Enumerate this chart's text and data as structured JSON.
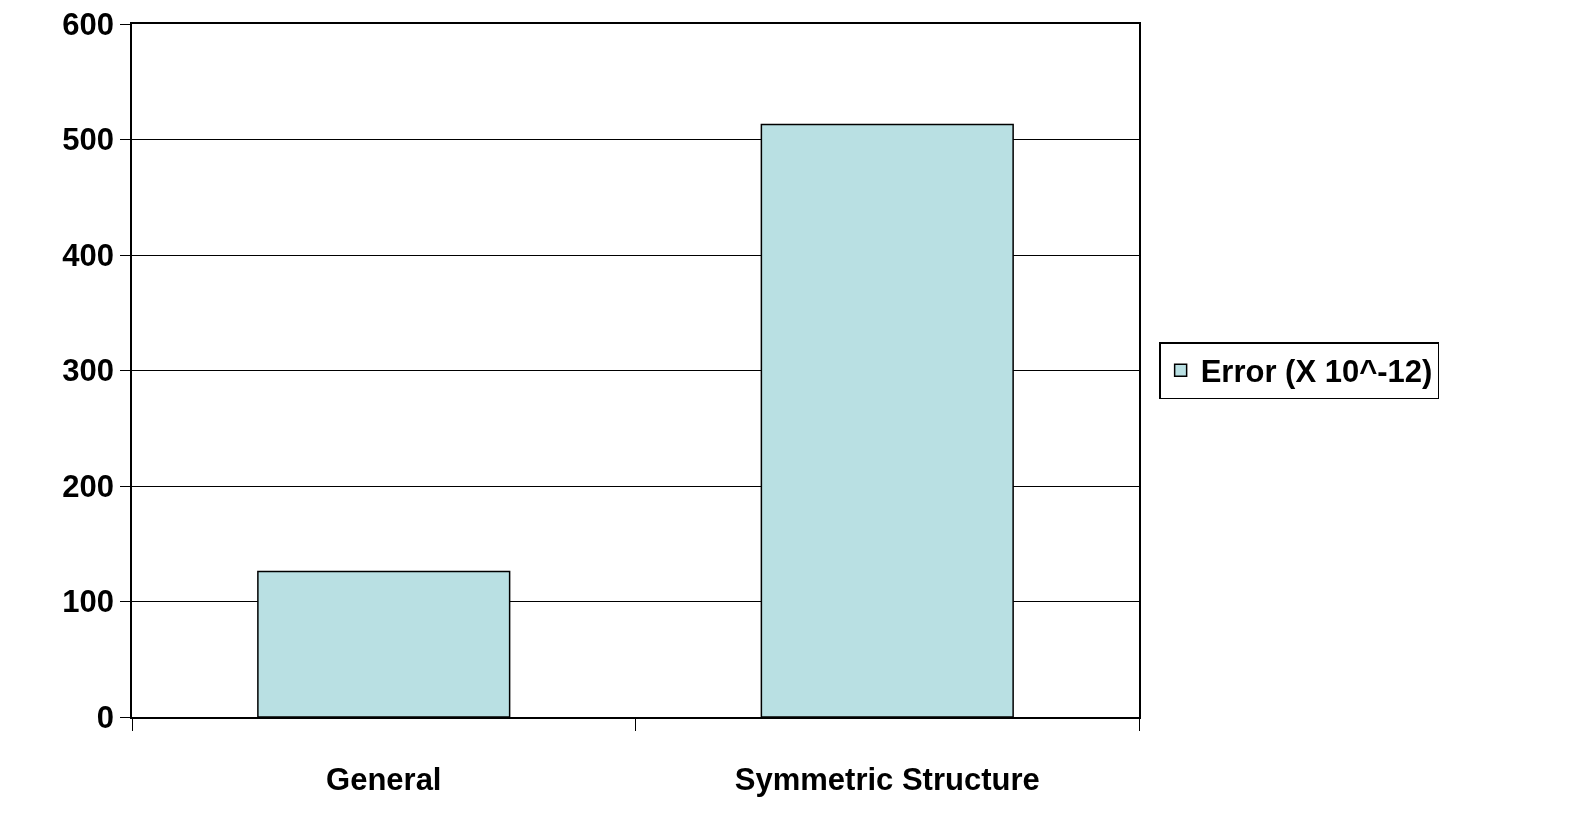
{
  "chart_data": {
    "type": "bar",
    "categories": [
      "General",
      "Symmetric Structure"
    ],
    "series": [
      {
        "name": "Error (X 10^-12)",
        "color": "#b9e0e3",
        "values": [
          126,
          513
        ]
      }
    ],
    "ylim": [
      0,
      600
    ],
    "yticks": [
      0,
      100,
      200,
      300,
      400,
      500,
      600
    ],
    "grid": "y",
    "legend": "right"
  }
}
